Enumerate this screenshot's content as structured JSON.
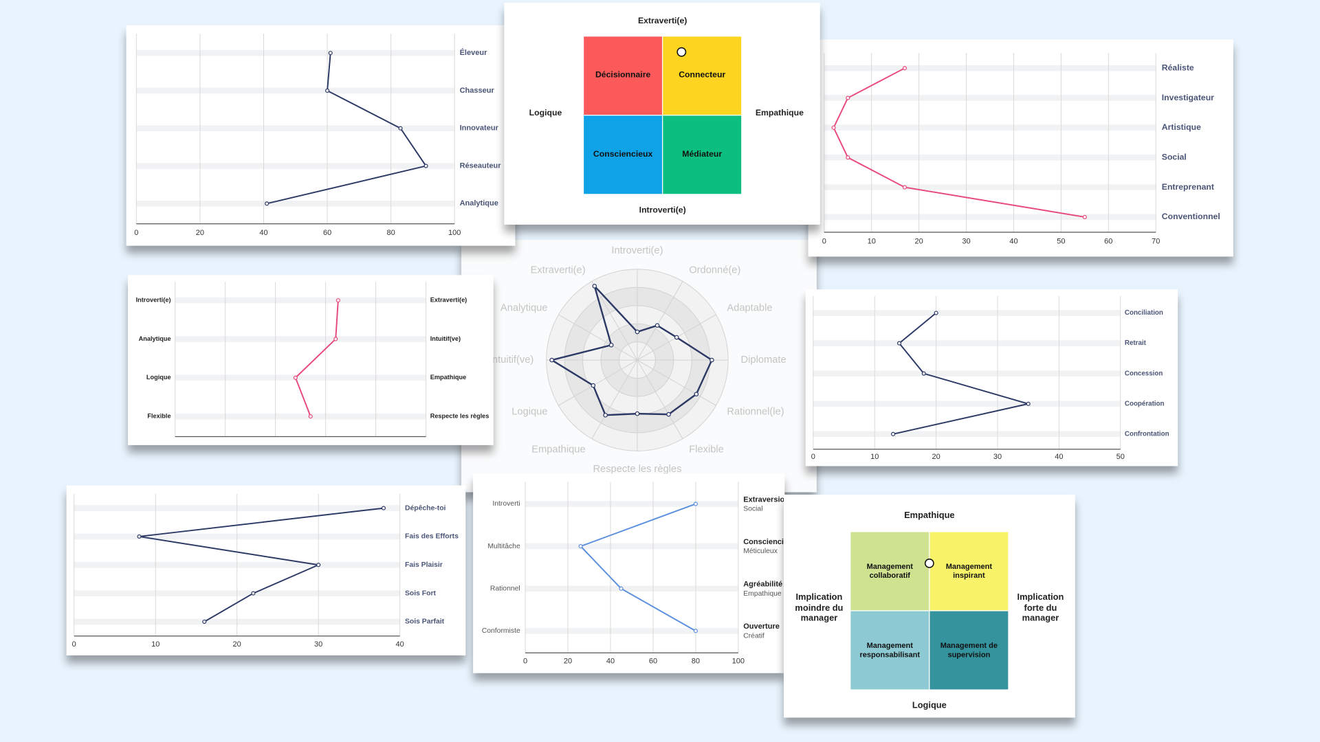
{
  "chart_data": [
    {
      "type": "line",
      "categories": [
        "Éleveur",
        "Chasseur",
        "Innovateur",
        "Réseauteur",
        "Analytique"
      ],
      "values": [
        61,
        60,
        83,
        91,
        41
      ],
      "color": "#2d3a66",
      "xlim": [
        0,
        100
      ],
      "xticks": [
        0,
        20,
        40,
        60,
        80,
        100
      ]
    },
    {
      "type": "quadrant",
      "top": "Extraverti(e)",
      "bottom": "Introverti(e)",
      "left": "Logique",
      "right": "Empathique",
      "cells": [
        {
          "label": "Décisionnaire",
          "color": "#fc5a5a"
        },
        {
          "label": "Connecteur",
          "color": "#fdd41f"
        },
        {
          "label": "Consciencieux",
          "color": "#0ea2e6"
        },
        {
          "label": "Médiateur",
          "color": "#0dbf7e"
        }
      ],
      "point": {
        "x": 0.62,
        "y": 0.9
      },
      "xlim": [
        0,
        1
      ],
      "ylim": [
        0,
        1
      ]
    },
    {
      "type": "line",
      "categories": [
        "Réaliste",
        "Investigateur",
        "Artistique",
        "Social",
        "Entreprenant",
        "Conventionnel"
      ],
      "values": [
        17,
        5,
        2,
        5,
        17,
        55
      ],
      "color": "#e8497c",
      "xlim": [
        0,
        70
      ],
      "xticks": [
        0,
        10,
        20,
        30,
        40,
        50,
        60,
        70
      ]
    },
    {
      "type": "line",
      "categories": [
        "Introverti(e)",
        "Analytique",
        "Logique",
        "Flexible"
      ],
      "right_labels": [
        "Extraverti(e)",
        "Intuitif(ve)",
        "Empathique",
        "Respecte les règles"
      ],
      "values": [
        65,
        64,
        48,
        54
      ],
      "color": "#e8497c",
      "xlim": [
        0,
        100
      ],
      "xticks": [
        0,
        20,
        40,
        60,
        80,
        100
      ],
      "tick_labels": false
    },
    {
      "type": "radar",
      "categories": [
        "Introverti(e)",
        "Ordonné(e)",
        "Adaptable",
        "Diplomate",
        "Rationnel(le)",
        "Flexible",
        "Respecte les règles",
        "Empathique",
        "Logique",
        "Intuitif(ve)",
        "Analytique",
        "Extraverti(e)"
      ],
      "values": [
        31,
        44,
        50,
        82,
        75,
        69,
        59,
        70,
        56,
        94,
        33,
        94
      ],
      "color": "#2d3a66",
      "rlim": [
        0,
        100
      ],
      "rticks": [
        20,
        40,
        60,
        80,
        100
      ]
    },
    {
      "type": "line",
      "categories": [
        "Conciliation",
        "Retrait",
        "Concession",
        "Coopération",
        "Confrontation"
      ],
      "values": [
        20,
        14,
        18,
        35,
        13
      ],
      "color": "#2d3a66",
      "xlim": [
        0,
        50
      ],
      "xticks": [
        0,
        10,
        20,
        30,
        40,
        50
      ]
    },
    {
      "type": "line",
      "categories": [
        "Dépêche-toi",
        "Fais des Efforts",
        "Fais Plaisir",
        "Sois Fort",
        "Sois Parfait"
      ],
      "values": [
        38,
        8,
        30,
        22,
        16
      ],
      "color": "#2d3a66",
      "xlim": [
        0,
        40
      ],
      "xticks": [
        0,
        10,
        20,
        30,
        40
      ]
    },
    {
      "type": "line",
      "categories": [
        "Introverti",
        "Multitâche",
        "Rationnel",
        "Conformiste"
      ],
      "right_labels": [
        {
          "title": "Extraversion",
          "subtitle": "Social"
        },
        {
          "title": "Conscienciosité",
          "subtitle": "Méticuleux"
        },
        {
          "title": "Agréabilité",
          "subtitle": "Empathique"
        },
        {
          "title": "Ouverture",
          "subtitle": "Créatif"
        }
      ],
      "values": [
        80,
        26,
        45,
        80
      ],
      "color": "#5b8fe0",
      "xlim": [
        0,
        100
      ],
      "xticks": [
        0,
        20,
        40,
        60,
        80,
        100
      ]
    },
    {
      "type": "quadrant",
      "top": "Empathique",
      "bottom": "Logique",
      "left": "Implication moindre du manager",
      "right": "Implication forte du manager",
      "cells": [
        {
          "label": "Management collaboratif",
          "color": "#cfe28f"
        },
        {
          "label": "Management inspirant",
          "color": "#f9f36a"
        },
        {
          "label": "Management responsabilisant",
          "color": "#8dcad3"
        },
        {
          "label": "Management de supervision",
          "color": "#35939e"
        }
      ],
      "point": {
        "x": 0.5,
        "y": 0.8
      },
      "xlim": [
        0,
        1
      ],
      "ylim": [
        0,
        1
      ]
    }
  ]
}
